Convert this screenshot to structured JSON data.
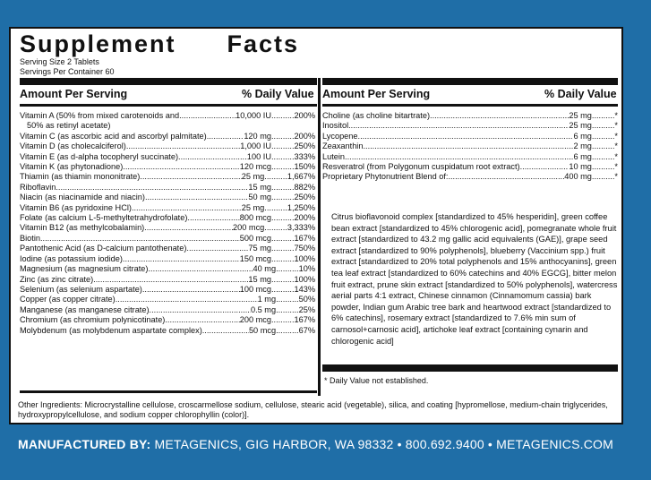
{
  "title": "Supplement      Facts",
  "serving_size": "Serving Size 2 Tablets",
  "servings_per_container": "Servings Per Container 60",
  "left_header": {
    "amount": "Amount Per Serving",
    "dv": "% Daily Value"
  },
  "right_header": {
    "amount": "Amount Per Serving",
    "dv": "% Daily Value"
  },
  "left_rows": [
    {
      "name": "Vitamin A (50% from mixed carotenoids and",
      "amount": "10,000 IU",
      "dv": "200%"
    },
    {
      "name": "50% as retinyl acetate)",
      "amount": "",
      "dv": ""
    },
    {
      "name": "Vitamin C (as ascorbic acid and ascorbyl palmitate)",
      "amount": "120 mg",
      "dv": "200%"
    },
    {
      "name": "Vitamin D (as cholecalciferol)",
      "amount": "1,000 IU",
      "dv": "250%"
    },
    {
      "name": "Vitamin E (as d-alpha tocopheryl succinate)",
      "amount": "100 IU",
      "dv": "333%"
    },
    {
      "name": "Vitamin K (as phytonadione)",
      "amount": "120 mcg",
      "dv": "150%"
    },
    {
      "name": "Thiamin (as thiamin mononitrate)",
      "amount": "25 mg",
      "dv": "1,667%"
    },
    {
      "name": "Riboflavin",
      "amount": "15 mg",
      "dv": "882%"
    },
    {
      "name": "Niacin (as niacinamide and niacin)",
      "amount": "50 mg",
      "dv": "250%"
    },
    {
      "name": "Vitamin B6 (as pyridoxine HCl)",
      "amount": "25 mg",
      "dv": "1,250%"
    },
    {
      "name": "Folate (as calcium L-5-methyltetrahydrofolate)",
      "amount": "800 mcg",
      "dv": "200%"
    },
    {
      "name": "Vitamin B12 (as methylcobalamin)",
      "amount": "200 mcg",
      "dv": "3,333%"
    },
    {
      "name": "Biotin",
      "amount": "500 mcg",
      "dv": "167%"
    },
    {
      "name": "Pantothenic Acid (as D-calcium pantothenate)",
      "amount": "75 mg",
      "dv": "750%"
    },
    {
      "name": "Iodine (as potassium iodide)",
      "amount": "150 mcg",
      "dv": "100%"
    },
    {
      "name": "Magnesium (as magnesium citrate)",
      "amount": "40 mg",
      "dv": "10%"
    },
    {
      "name": "Zinc (as zinc citrate)",
      "amount": "15 mg",
      "dv": "100%"
    },
    {
      "name": "Selenium (as selenium aspartate)",
      "amount": "100 mcg",
      "dv": "143%"
    },
    {
      "name": "Copper (as copper citrate)",
      "amount": "1 mg",
      "dv": "50%"
    },
    {
      "name": "Manganese (as manganese citrate)",
      "amount": "0.5 mg",
      "dv": "25%"
    },
    {
      "name": "Chromium (as chromium polynicotinate)",
      "amount": "200 mcg",
      "dv": "167%"
    },
    {
      "name": "Molybdenum (as molybdenum aspartate complex)",
      "amount": "50 mcg",
      "dv": "67%"
    }
  ],
  "right_rows": [
    {
      "name": "Choline (as choline bitartrate)",
      "amount": "25 mg",
      "dv": "*"
    },
    {
      "name": "Inositol",
      "amount": "25 mg",
      "dv": "*"
    },
    {
      "name": "Lycopene",
      "amount": "6 mg",
      "dv": "*"
    },
    {
      "name": "Zeaxanthin",
      "amount": "2 mg",
      "dv": "*"
    },
    {
      "name": "Lutein",
      "amount": "6 mg",
      "dv": "*"
    },
    {
      "name": "Resveratrol (from Polygonum cuspidatum root extract)",
      "amount": "10 mg",
      "dv": "*"
    },
    {
      "name": "Proprietary Phytonutrient Blend of:",
      "amount": "400 mg",
      "dv": "*"
    }
  ],
  "blend_text": "Citrus bioflavonoid complex [standardized to 45% hesperidin], green coffee bean extract [standardized to 45% chlorogenic acid], pomegranate whole fruit extract [standardized to 43.2 mg gallic acid equivalents (GAE)], grape seed extract [standardized to 90% polyphenols], blueberry (Vaccinium spp.) fruit extract [standardized to 20% total polyphenols and 15% anthocyanins], green tea leaf extract [standardized to 60% catechins and 40% EGCG], bitter melon fruit extract, prune skin extract [standardized to 50% polyphenols], watercress aerial parts 4:1 extract, Chinese cinnamon (Cinnamomum cassia) bark powder, Indian gum Arabic tree bark and heartwood extract [standardized to 6% catechins], rosemary extract [standardized to 7.6% min sum of carnosol+carnosic acid], artichoke leaf extract [containing cynarin and chlorogenic acid]",
  "dv_note": "* Daily Value not established.",
  "other_ingredients": "Other Ingredients: Microcrystalline cellulose, croscarmellose sodium, cellulose, stearic acid (vegetable), silica, and coating [hypromellose, medium-chain triglycerides, hydroxypropylcellulose, and sodium copper chlorophyllin (color)].",
  "manufacturer": {
    "label": "MANUFACTURED BY:",
    "text": "METAGENICS, GIG HARBOR, WA 98332 • 800.692.9400 • METAGENICS.COM"
  },
  "colors": {
    "background": "#1f6ea7",
    "panel": "#ffffff",
    "ink": "#111111"
  }
}
